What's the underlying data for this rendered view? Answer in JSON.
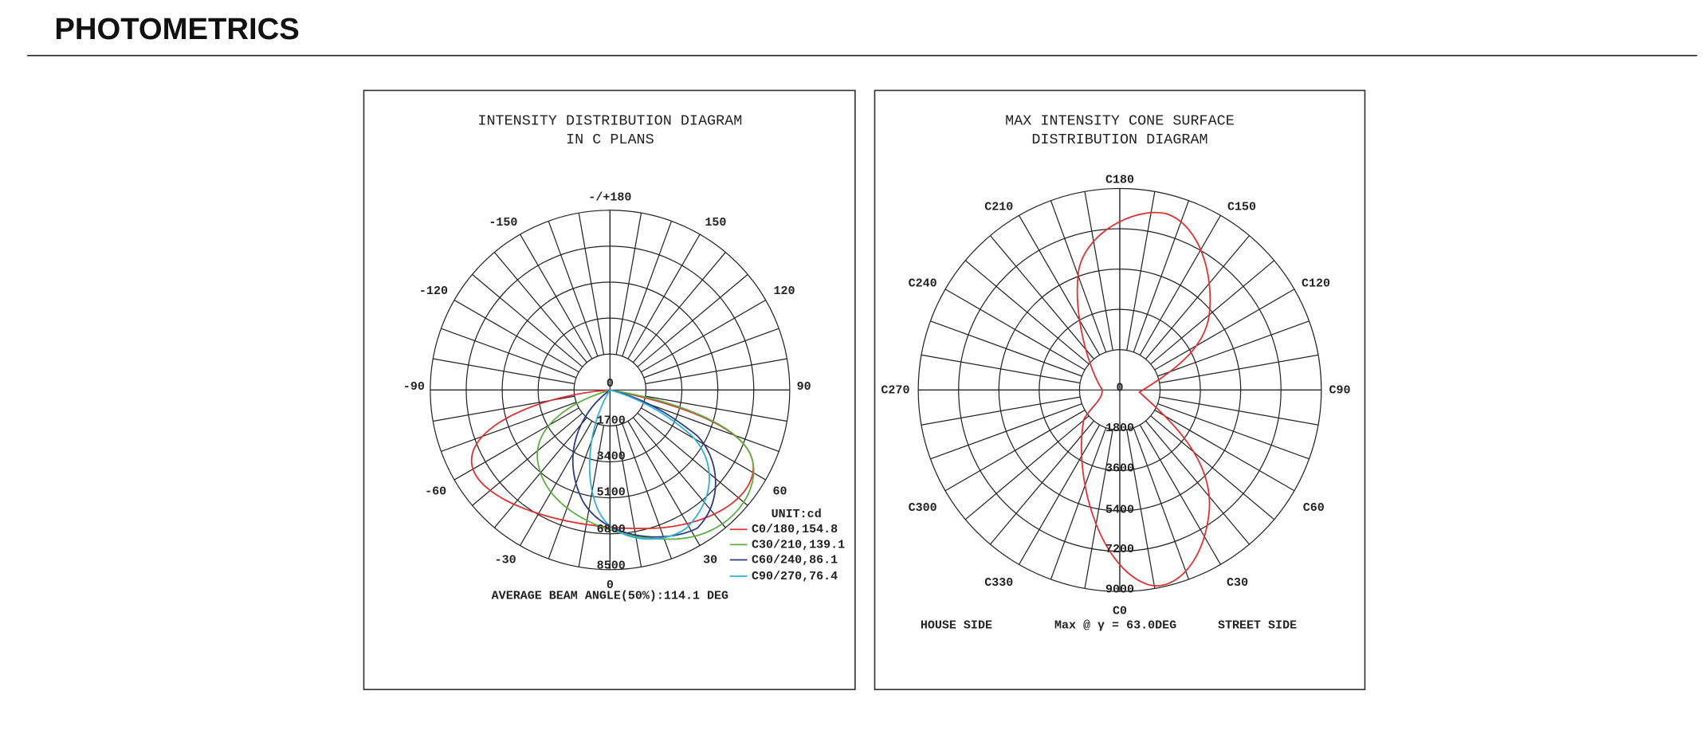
{
  "header": {
    "title": "PHOTOMETRICS"
  },
  "panels": [
    {
      "title_lines": [
        "INTENSITY DISTRIBUTION DIAGRAM",
        "IN C PLANS"
      ],
      "angle_labels": [
        "-/+180",
        "150",
        "120",
        "90",
        "60",
        "30",
        "0",
        "-30",
        "-60",
        "-90",
        "-120",
        "-150"
      ],
      "radial_labels": [
        "0",
        "1700",
        "3400",
        "5100",
        "6800",
        "8500"
      ],
      "unit_label": "UNIT:cd",
      "legend": [
        "C0/180,154.8",
        "C30/210,139.1",
        "C60/240,86.1",
        "C90/270,76.4"
      ],
      "footer": "AVERAGE BEAM ANGLE(50%):114.1 DEG"
    },
    {
      "title_lines": [
        "MAX INTENSITY CONE SURFACE",
        "DISTRIBUTION DIAGRAM"
      ],
      "angle_labels": [
        "C180",
        "C150",
        "C120",
        "C90",
        "C60",
        "C30",
        "C0",
        "C330",
        "C300",
        "C270",
        "C240",
        "C210"
      ],
      "radial_labels": [
        "0",
        "1800",
        "3600",
        "5400",
        "7200",
        "9000"
      ],
      "footer_left": "HOUSE SIDE",
      "footer_middle": "Max @ γ = 63.0DEG",
      "footer_right": "STREET SIDE"
    }
  ]
}
